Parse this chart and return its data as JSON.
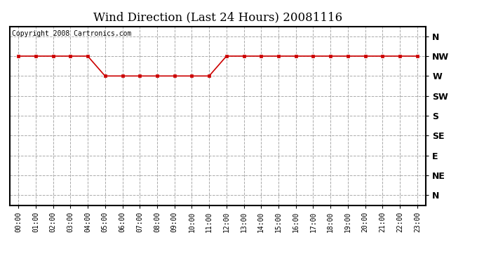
{
  "title": "Wind Direction (Last 24 Hours) 20081116",
  "copyright_text": "Copyright 2008 Cartronics.com",
  "background_color": "#ffffff",
  "plot_background": "#ffffff",
  "line_color": "#cc0000",
  "marker": "s",
  "marker_color": "#cc0000",
  "marker_size": 3,
  "grid_color": "#aaaaaa",
  "grid_style": "--",
  "x_labels": [
    "00:00",
    "01:00",
    "02:00",
    "03:00",
    "04:00",
    "05:00",
    "06:00",
    "07:00",
    "08:00",
    "09:00",
    "10:00",
    "11:00",
    "12:00",
    "13:00",
    "14:00",
    "15:00",
    "16:00",
    "17:00",
    "18:00",
    "19:00",
    "20:00",
    "21:00",
    "22:00",
    "23:00"
  ],
  "y_labels": [
    "N",
    "NW",
    "W",
    "SW",
    "S",
    "SE",
    "E",
    "NE",
    "N"
  ],
  "y_values": [
    9,
    8,
    7,
    6,
    5,
    4,
    3,
    2,
    1
  ],
  "wind_data": [
    8,
    8,
    8,
    8,
    8,
    7,
    7,
    7,
    7,
    7,
    7,
    7,
    8,
    8,
    8,
    8,
    8,
    8,
    8,
    8,
    8,
    8,
    8,
    8
  ],
  "xlim": [
    -0.5,
    23.5
  ],
  "ylim": [
    0.5,
    9.5
  ],
  "title_fontsize": 12,
  "tick_fontsize": 7,
  "copyright_fontsize": 7
}
